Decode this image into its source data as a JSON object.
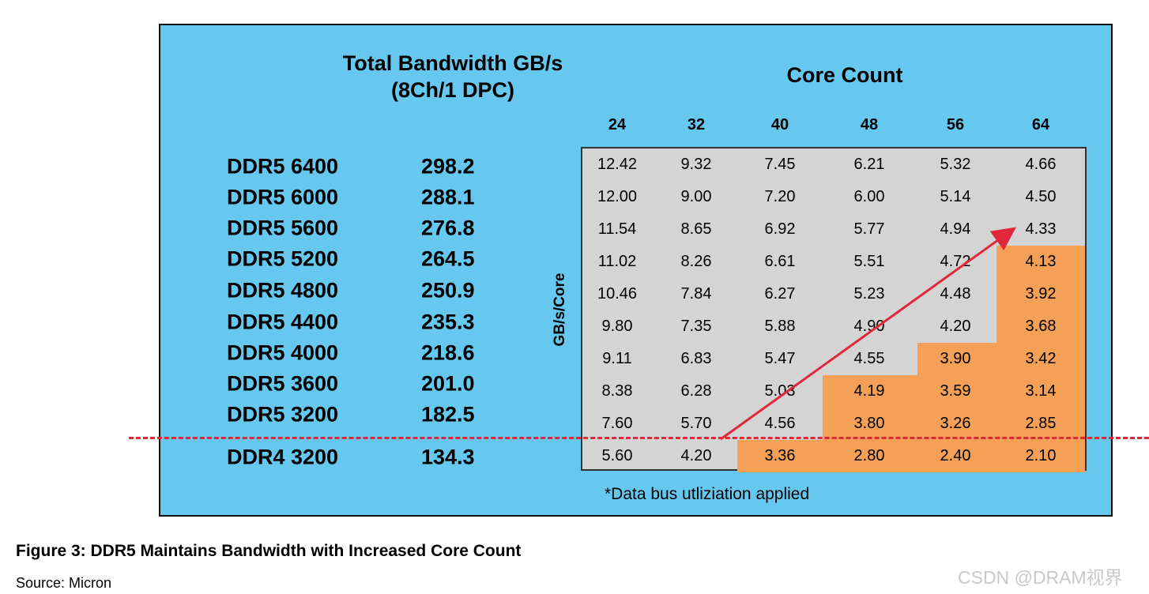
{
  "chart_data": {
    "type": "table",
    "title": "Total Bandwidth GB/s",
    "subtitle": "(8Ch/1 DPC)",
    "column_group_title": "Core Count",
    "row_axis_label": "GB/s/Core",
    "core_counts": [
      "24",
      "32",
      "40",
      "48",
      "56",
      "64"
    ],
    "rows": [
      {
        "memory": "DDR5 6400",
        "bandwidth": "298.2",
        "per_core": [
          "12.42",
          "9.32",
          "7.45",
          "6.21",
          "5.32",
          "4.66"
        ],
        "highlight_from": 6
      },
      {
        "memory": "DDR5 6000",
        "bandwidth": "288.1",
        "per_core": [
          "12.00",
          "9.00",
          "7.20",
          "6.00",
          "5.14",
          "4.50"
        ],
        "highlight_from": 6
      },
      {
        "memory": "DDR5 5600",
        "bandwidth": "276.8",
        "per_core": [
          "11.54",
          "8.65",
          "6.92",
          "5.77",
          "4.94",
          "4.33"
        ],
        "highlight_from": 6
      },
      {
        "memory": "DDR5 5200",
        "bandwidth": "264.5",
        "per_core": [
          "11.02",
          "8.26",
          "6.61",
          "5.51",
          "4.72",
          "4.13"
        ],
        "highlight_from": 5
      },
      {
        "memory": "DDR5 4800",
        "bandwidth": "250.9",
        "per_core": [
          "10.46",
          "7.84",
          "6.27",
          "5.23",
          "4.48",
          "3.92"
        ],
        "highlight_from": 5
      },
      {
        "memory": "DDR5 4400",
        "bandwidth": "235.3",
        "per_core": [
          "9.80",
          "7.35",
          "5.88",
          "4.90",
          "4.20",
          "3.68"
        ],
        "highlight_from": 5
      },
      {
        "memory": "DDR5 4000",
        "bandwidth": "218.6",
        "per_core": [
          "9.11",
          "6.83",
          "5.47",
          "4.55",
          "3.90",
          "3.42"
        ],
        "highlight_from": 4
      },
      {
        "memory": "DDR5 3600",
        "bandwidth": "201.0",
        "per_core": [
          "8.38",
          "6.28",
          "5.03",
          "4.19",
          "3.59",
          "3.14"
        ],
        "highlight_from": 3
      },
      {
        "memory": "DDR5 3200",
        "bandwidth": "182.5",
        "per_core": [
          "7.60",
          "5.70",
          "4.56",
          "3.80",
          "3.26",
          "2.85"
        ],
        "highlight_from": 3
      },
      {
        "memory": "DDR4 3200",
        "bandwidth": "134.3",
        "per_core": [
          "5.60",
          "4.20",
          "3.36",
          "2.80",
          "2.40",
          "2.10"
        ],
        "highlight_from": 2
      }
    ],
    "footnote": "*Data bus utliziation applied"
  },
  "caption": "Figure 3: DDR5 Maintains Bandwidth with Increased Core Count",
  "source": "Source: Micron",
  "watermark": "CSDN @DRAM视界",
  "colors": {
    "panel": "#66c8ee",
    "table": "#d4d4d4",
    "highlight": "#f5a057",
    "arrow": "#e0283a",
    "dashed_line": "#e0283a"
  }
}
